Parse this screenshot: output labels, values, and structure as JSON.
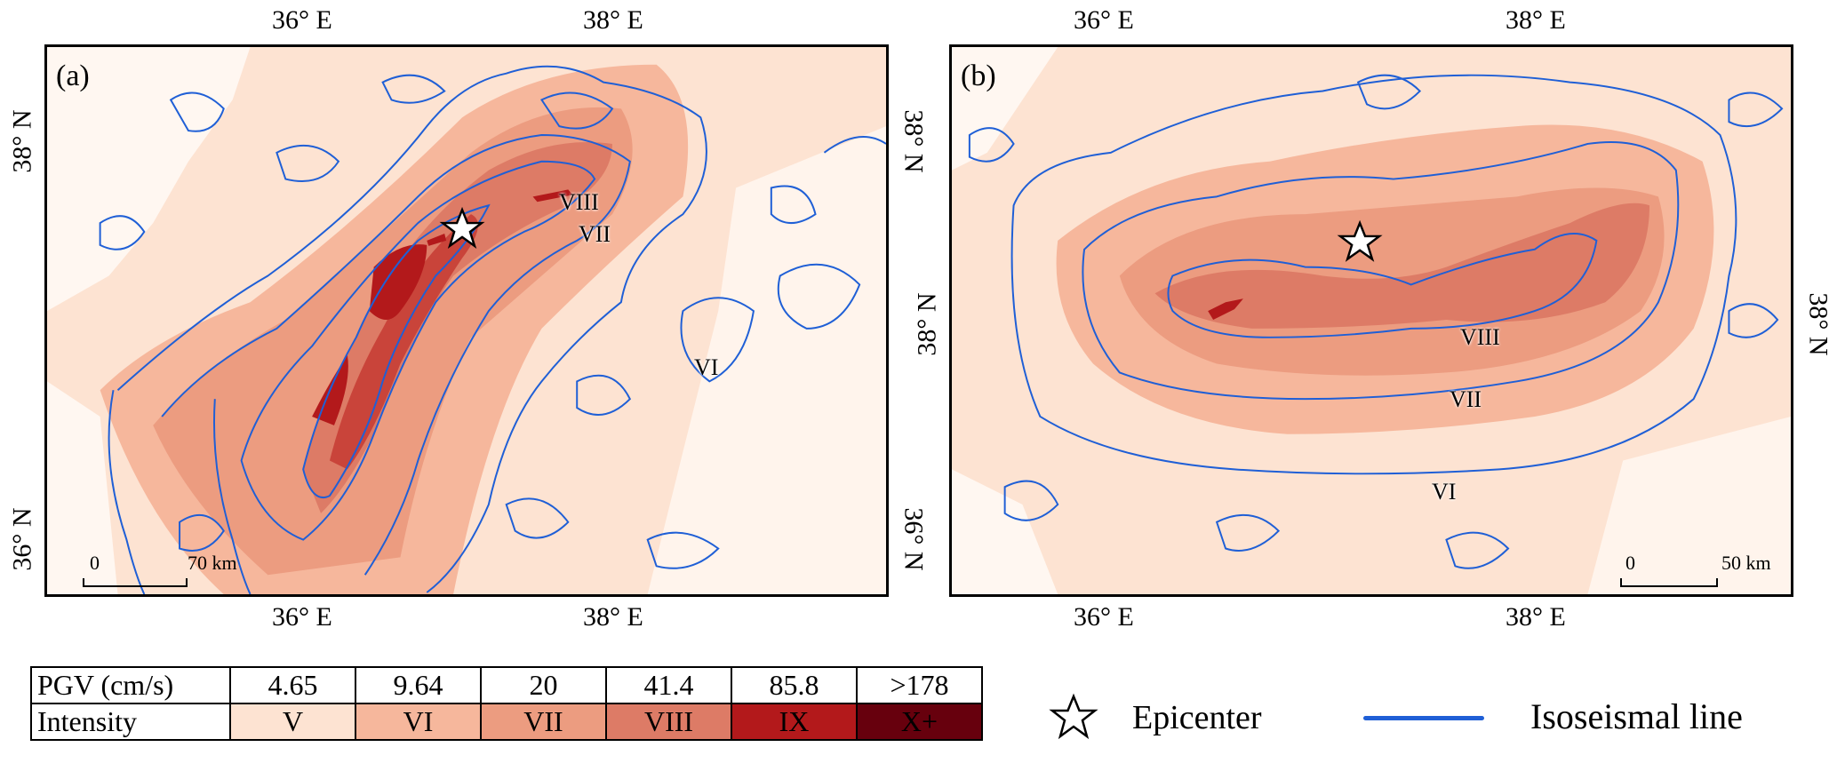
{
  "panels": {
    "a": {
      "label": "(a)",
      "top_ticks": [
        "36° E",
        "38° E"
      ],
      "bottom_ticks": [
        "36° E",
        "38° E"
      ],
      "left_ticks": [
        "38° N",
        "36° N"
      ],
      "right_ticks": [
        "38° N",
        "36° N"
      ],
      "scale": {
        "start": "0",
        "end": "70 km"
      },
      "iso_labels": {
        "viii": "VIII",
        "vii": "VII",
        "vi": "VI"
      }
    },
    "b": {
      "label": "(b)",
      "top_ticks": [
        "36° E",
        "38° E"
      ],
      "bottom_ticks": [
        "36° E",
        "38° E"
      ],
      "left_ticks": [
        "38° N"
      ],
      "right_ticks": [
        "38° N"
      ],
      "scale": {
        "start": "0",
        "end": "50 km"
      },
      "iso_labels": {
        "viii": "VIII",
        "vii": "VII",
        "vi": "VI"
      }
    }
  },
  "legend": {
    "pgv_label": "PGV (cm/s)",
    "intensity_label": "Intensity",
    "pgv_values": [
      "4.65",
      "9.64",
      "20",
      "41.4",
      "85.8",
      ">178"
    ],
    "intensities": [
      "V",
      "VI",
      "VII",
      "VIII",
      "IX",
      "X+"
    ],
    "colors": [
      "#fde3d2",
      "#f6b79c",
      "#ec9c80",
      "#dd7b66",
      "#b3191b",
      "#67000d"
    ],
    "epicenter_label": "Epicenter",
    "isoseismal_label": "Isoseismal line",
    "isoseismal_color": "#1f5fd6"
  }
}
